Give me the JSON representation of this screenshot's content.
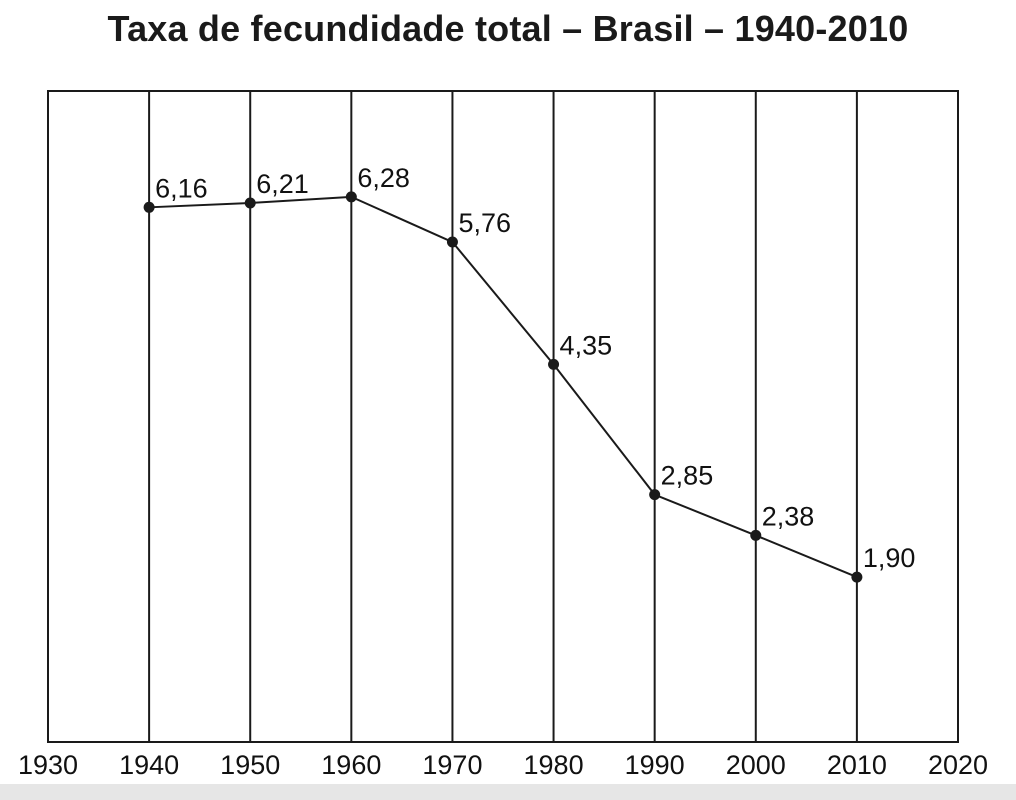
{
  "chart_data": {
    "type": "line",
    "title": "Taxa de fecundidade total – Brasil – 1940-2010",
    "xlabel": "",
    "ylabel": "",
    "xlim": [
      1930,
      2020
    ],
    "ylim": [
      0,
      7.5
    ],
    "grid": "vertical",
    "xticks": [
      "1930",
      "1940",
      "1950",
      "1960",
      "1970",
      "1980",
      "1990",
      "2000",
      "2010",
      "2020"
    ],
    "series": [
      {
        "x": [
          1940,
          1950,
          1960,
          1970,
          1980,
          1990,
          2000,
          2010
        ],
        "y": [
          6.16,
          6.21,
          6.28,
          5.76,
          4.35,
          2.85,
          2.38,
          1.9
        ],
        "labels": [
          "6,16",
          "6,21",
          "6,28",
          "5,76",
          "4,35",
          "2,85",
          "2,38",
          "1,90"
        ]
      }
    ],
    "colors": {
      "line": "#1a1a1a",
      "grid": "#1a1a1a"
    }
  }
}
